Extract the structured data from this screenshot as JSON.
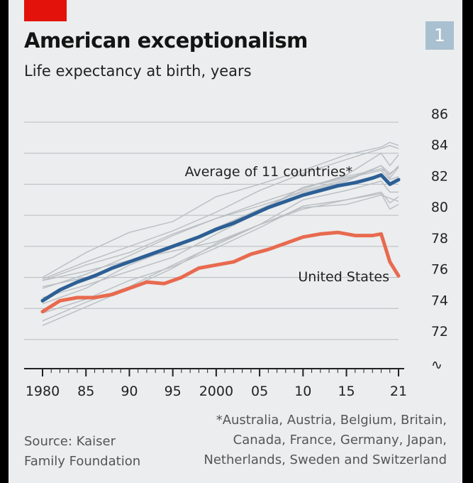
{
  "header": {
    "title": "American exceptionalism",
    "subtitle": "Life expectancy at birth, years",
    "badge": "1",
    "accent_color": "#e3120b"
  },
  "source": [
    "Source: Kaiser",
    "Family Foundation"
  ],
  "footnote": [
    "*Australia, Austria, Belgium, Britain,",
    "Canada, France, Germany, Japan,",
    "Netherlands, Sweden and Switzerland"
  ],
  "chart_data": {
    "type": "line",
    "title": "American exceptionalism",
    "subtitle": "Life expectancy at birth, years",
    "xlabel": "",
    "ylabel": "Life expectancy at birth, years",
    "xlim": [
      1980,
      2021
    ],
    "ylim": [
      72,
      86
    ],
    "y_ticks": [
      86,
      84,
      82,
      80,
      78,
      76,
      74,
      72
    ],
    "x_tick_labels": [
      "1980",
      "85",
      "90",
      "95",
      "2000",
      "05",
      "10",
      "15",
      "21"
    ],
    "x_tick_years": [
      1980,
      1985,
      1990,
      1995,
      2000,
      2005,
      2010,
      2015,
      2021
    ],
    "axis_break_symbol": "∿",
    "series": [
      {
        "name": "Average of 11 countries*",
        "label": "Average of 11 countries*",
        "color": "#2c5f95",
        "x": [
          1980,
          1982,
          1984,
          1986,
          1988,
          1990,
          1992,
          1994,
          1996,
          1998,
          2000,
          2002,
          2004,
          2006,
          2008,
          2010,
          2012,
          2014,
          2016,
          2018,
          2019,
          2020,
          2021
        ],
        "values": [
          74.5,
          75.2,
          75.7,
          76.1,
          76.6,
          77.0,
          77.4,
          77.8,
          78.2,
          78.6,
          79.1,
          79.5,
          80.0,
          80.5,
          80.9,
          81.3,
          81.6,
          81.9,
          82.1,
          82.4,
          82.6,
          82.0,
          82.3
        ]
      },
      {
        "name": "United States",
        "label": "United States",
        "color": "#e86a4f",
        "x": [
          1980,
          1982,
          1984,
          1986,
          1988,
          1990,
          1992,
          1994,
          1996,
          1998,
          2000,
          2002,
          2004,
          2006,
          2008,
          2010,
          2012,
          2014,
          2016,
          2018,
          2019,
          2020,
          2021
        ],
        "values": [
          73.8,
          74.5,
          74.7,
          74.7,
          74.9,
          75.3,
          75.7,
          75.6,
          76.0,
          76.6,
          76.8,
          77.0,
          77.5,
          77.8,
          78.2,
          78.6,
          78.8,
          78.9,
          78.7,
          78.7,
          78.8,
          77.0,
          76.1
        ]
      }
    ],
    "background_series_color": "#b9bec3",
    "background_series": [
      {
        "x": [
          1980,
          1985,
          1990,
          1995,
          2000,
          2005,
          2010,
          2015,
          2019,
          2020,
          2021
        ],
        "values": [
          75.9,
          77.0,
          78.0,
          79.0,
          80.2,
          81.6,
          82.7,
          83.6,
          84.3,
          84.5,
          84.3
        ]
      },
      {
        "x": [
          1980,
          1985,
          1990,
          1995,
          2000,
          2005,
          2010,
          2015,
          2019,
          2020,
          2021
        ],
        "values": [
          74.7,
          75.5,
          76.4,
          77.3,
          78.8,
          80.2,
          81.8,
          82.5,
          83.0,
          82.6,
          83.2
        ]
      },
      {
        "x": [
          1980,
          1985,
          1990,
          1995,
          2000,
          2005,
          2010,
          2015,
          2019,
          2020,
          2021
        ],
        "values": [
          75.4,
          76.0,
          77.0,
          77.9,
          79.2,
          80.4,
          81.6,
          82.3,
          83.2,
          82.7,
          83.1
        ]
      },
      {
        "x": [
          1980,
          1985,
          1990,
          1995,
          2000,
          2005,
          2010,
          2015,
          2019,
          2020,
          2021
        ],
        "values": [
          73.2,
          74.4,
          75.4,
          76.8,
          78.1,
          79.4,
          80.4,
          81.0,
          81.5,
          80.8,
          81.2
        ]
      },
      {
        "x": [
          1980,
          1985,
          1990,
          1995,
          2000,
          2005,
          2010,
          2015,
          2019,
          2020,
          2021
        ],
        "values": [
          73.7,
          74.6,
          75.8,
          76.7,
          77.9,
          79.2,
          80.6,
          81.0,
          81.4,
          80.4,
          80.7
        ]
      },
      {
        "x": [
          1980,
          1985,
          1990,
          1995,
          2000,
          2005,
          2010,
          2015,
          2019,
          2020,
          2021
        ],
        "values": [
          74.3,
          75.3,
          76.8,
          77.9,
          79.2,
          80.3,
          81.8,
          82.4,
          82.9,
          82.3,
          82.5
        ]
      },
      {
        "x": [
          1980,
          1985,
          1990,
          1995,
          2000,
          2005,
          2010,
          2015,
          2019,
          2020,
          2021
        ],
        "values": [
          72.9,
          74.1,
          75.3,
          76.6,
          78.2,
          79.4,
          80.5,
          80.7,
          81.3,
          81.1,
          80.9
        ]
      },
      {
        "x": [
          1980,
          1985,
          1990,
          1995,
          2000,
          2005,
          2010,
          2015,
          2019,
          2020,
          2021
        ],
        "values": [
          76.0,
          77.6,
          78.9,
          79.6,
          81.2,
          82.0,
          82.9,
          83.9,
          84.4,
          84.7,
          84.5
        ]
      },
      {
        "x": [
          1980,
          1985,
          1990,
          1995,
          2000,
          2005,
          2010,
          2015,
          2019,
          2020,
          2021
        ],
        "values": [
          75.8,
          76.4,
          77.1,
          77.7,
          78.3,
          79.4,
          81.0,
          81.6,
          82.2,
          81.5,
          81.5
        ]
      },
      {
        "x": [
          1980,
          1985,
          1990,
          1995,
          2000,
          2005,
          2010,
          2015,
          2019,
          2020,
          2021
        ],
        "values": [
          75.8,
          76.8,
          77.6,
          78.8,
          79.8,
          80.6,
          81.5,
          82.2,
          83.2,
          82.4,
          83.1
        ]
      },
      {
        "x": [
          1980,
          1985,
          1990,
          1995,
          2000,
          2005,
          2010,
          2015,
          2019,
          2020,
          2021
        ],
        "values": [
          75.3,
          76.2,
          77.4,
          78.7,
          79.8,
          80.8,
          81.7,
          82.6,
          84.0,
          83.2,
          83.9
        ]
      }
    ]
  }
}
